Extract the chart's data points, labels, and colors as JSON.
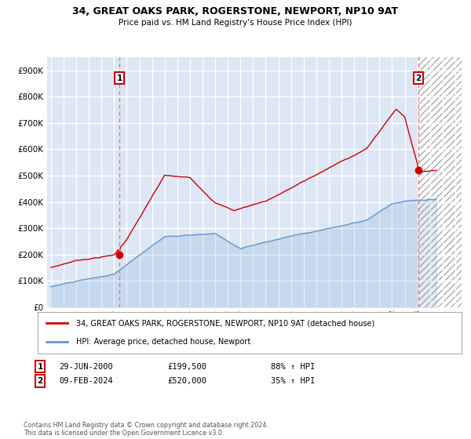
{
  "title": "34, GREAT OAKS PARK, ROGERSTONE, NEWPORT, NP10 9AT",
  "subtitle": "Price paid vs. HM Land Registry's House Price Index (HPI)",
  "ytick_vals": [
    0,
    100000,
    200000,
    300000,
    400000,
    500000,
    600000,
    700000,
    800000,
    900000
  ],
  "ylim": [
    0,
    950000
  ],
  "xlim_start": 1994.7,
  "xlim_end": 2027.5,
  "legend_line1": "34, GREAT OAKS PARK, ROGERSTONE, NEWPORT, NP10 9AT (detached house)",
  "legend_line2": "HPI: Average price, detached house, Newport",
  "red_color": "#cc0000",
  "blue_color": "#6699cc",
  "bg_color": "#dce6f5",
  "grid_color": "#ffffff",
  "dashed_line_color": "#e87070",
  "annotation_box_color": "#cc0000",
  "footer_text": "Contains HM Land Registry data © Crown copyright and database right 2024.\nThis data is licensed under the Open Government Licence v3.0.",
  "xtick_years": [
    1995,
    1996,
    1997,
    1998,
    1999,
    2000,
    2001,
    2002,
    2003,
    2004,
    2005,
    2006,
    2007,
    2008,
    2009,
    2010,
    2011,
    2012,
    2013,
    2014,
    2015,
    2016,
    2017,
    2018,
    2019,
    2020,
    2021,
    2022,
    2023,
    2024,
    2025,
    2026,
    2027
  ]
}
